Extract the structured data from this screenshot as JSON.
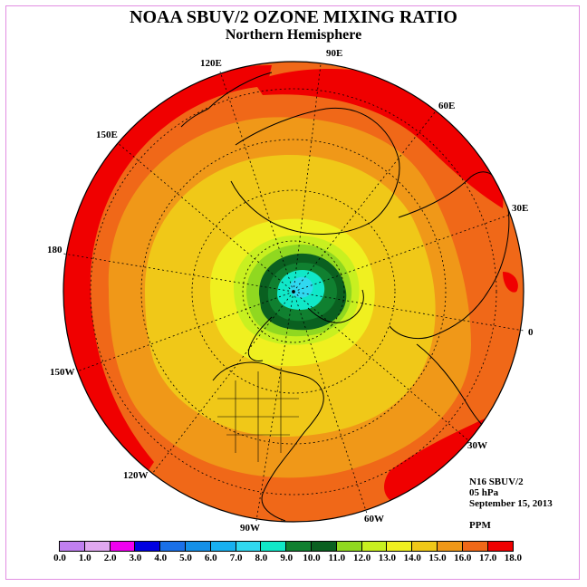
{
  "title": "NOAA SBUV/2 OZONE MIXING RATIO",
  "subtitle": "Northern Hemisphere",
  "longitude_labels": [
    "90E",
    "60E",
    "30E",
    "0",
    "30W",
    "60W",
    "90W",
    "120W",
    "150W",
    "180",
    "150E",
    "120E"
  ],
  "info": {
    "instrument": "N16 SBUV/2",
    "level": "05 hPa",
    "date": "September 15, 2013",
    "units": "PPM"
  },
  "colorbar": {
    "ticks": [
      "0.0",
      "1.0",
      "2.0",
      "3.0",
      "4.0",
      "5.0",
      "6.0",
      "7.0",
      "8.0",
      "9.0",
      "10.0",
      "11.0",
      "12.0",
      "13.0",
      "14.0",
      "15.0",
      "16.0",
      "17.0",
      "18.0"
    ],
    "colors": [
      "#c07ff0",
      "#e0a8f0",
      "#f000f0",
      "#0000e0",
      "#1a70e8",
      "#1490e8",
      "#18b0f0",
      "#30d8f0",
      "#10e8c8",
      "#108030",
      "#0a6020",
      "#90d820",
      "#c8f020",
      "#f0f020",
      "#f0c818",
      "#f09818",
      "#f06818",
      "#f00000",
      "#805030"
    ]
  },
  "map_layers": {
    "background": "#f06818",
    "outer_band": "#f00000",
    "mid_band": "#f09818",
    "inner_band": "#f0c818",
    "yellow": "#f0f020",
    "light_green": "#c8f020",
    "green": "#90d820",
    "dark_green": "#108030",
    "darkest_green": "#0a6020",
    "cyan": "#10e8c8",
    "light_blue": "#30d8f0"
  }
}
